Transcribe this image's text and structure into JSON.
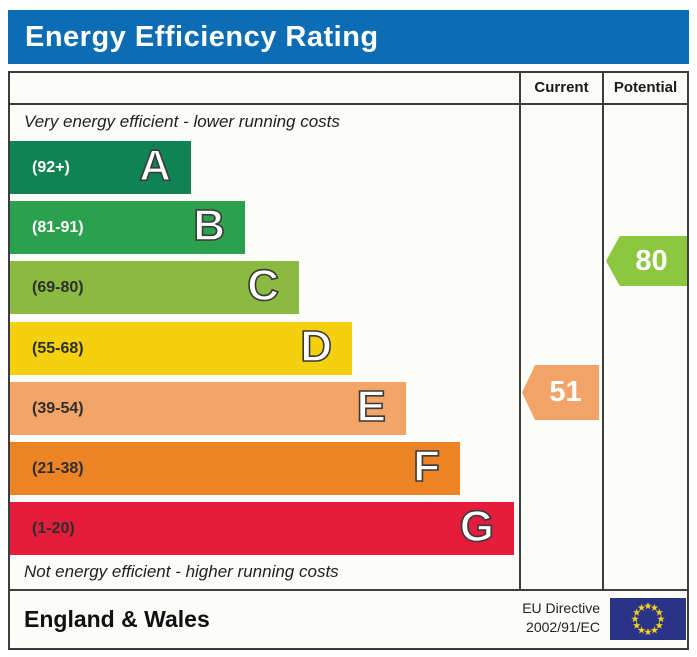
{
  "title": "Energy Efficiency Rating",
  "columns": {
    "current": "Current",
    "potential": "Potential"
  },
  "captions": {
    "top": "Very energy efficient - lower running costs",
    "bottom": "Not energy efficient - higher running costs"
  },
  "chart_data": {
    "type": "bar",
    "title": "Energy Efficiency Rating",
    "scale_range": [
      1,
      100
    ],
    "bands": [
      {
        "letter": "A",
        "range_label": "(92+)",
        "range": [
          92,
          100
        ],
        "color": "#108354",
        "label_color": "#ffffff"
      },
      {
        "letter": "B",
        "range_label": "(81-91)",
        "range": [
          81,
          91
        ],
        "color": "#2ba04e",
        "label_color": "#ffffff"
      },
      {
        "letter": "C",
        "range_label": "(69-80)",
        "range": [
          69,
          80
        ],
        "color": "#8abb40",
        "label_color": "#2e2e2e"
      },
      {
        "letter": "D",
        "range_label": "(55-68)",
        "range": [
          55,
          68
        ],
        "color": "#f5d00f",
        "label_color": "#2e2e2e"
      },
      {
        "letter": "E",
        "range_label": "(39-54)",
        "range": [
          39,
          54
        ],
        "color": "#f2a567",
        "label_color": "#2e2e2e"
      },
      {
        "letter": "F",
        "range_label": "(21-38)",
        "range": [
          21,
          38
        ],
        "color": "#ec8324",
        "label_color": "#2e2e2e"
      },
      {
        "letter": "G",
        "range_label": "(1-20)",
        "range": [
          1,
          20
        ],
        "color": "#e41d3d",
        "label_color": "#2e2e2e"
      }
    ],
    "current": {
      "value": 51,
      "band": "E",
      "color": "#f2a468"
    },
    "potential": {
      "value": 80,
      "band": "C",
      "color": "#8dc63f"
    }
  },
  "footer": {
    "region": "England & Wales",
    "directive_line1": "EU Directive",
    "directive_line2": "2002/91/EC"
  },
  "colors": {
    "header_bar": "#0c6db5",
    "border": "#3d3d3d",
    "panel_background": "#fcfcf9",
    "eu_flag_background": "#293488",
    "eu_flag_stars": "#f7d117"
  }
}
